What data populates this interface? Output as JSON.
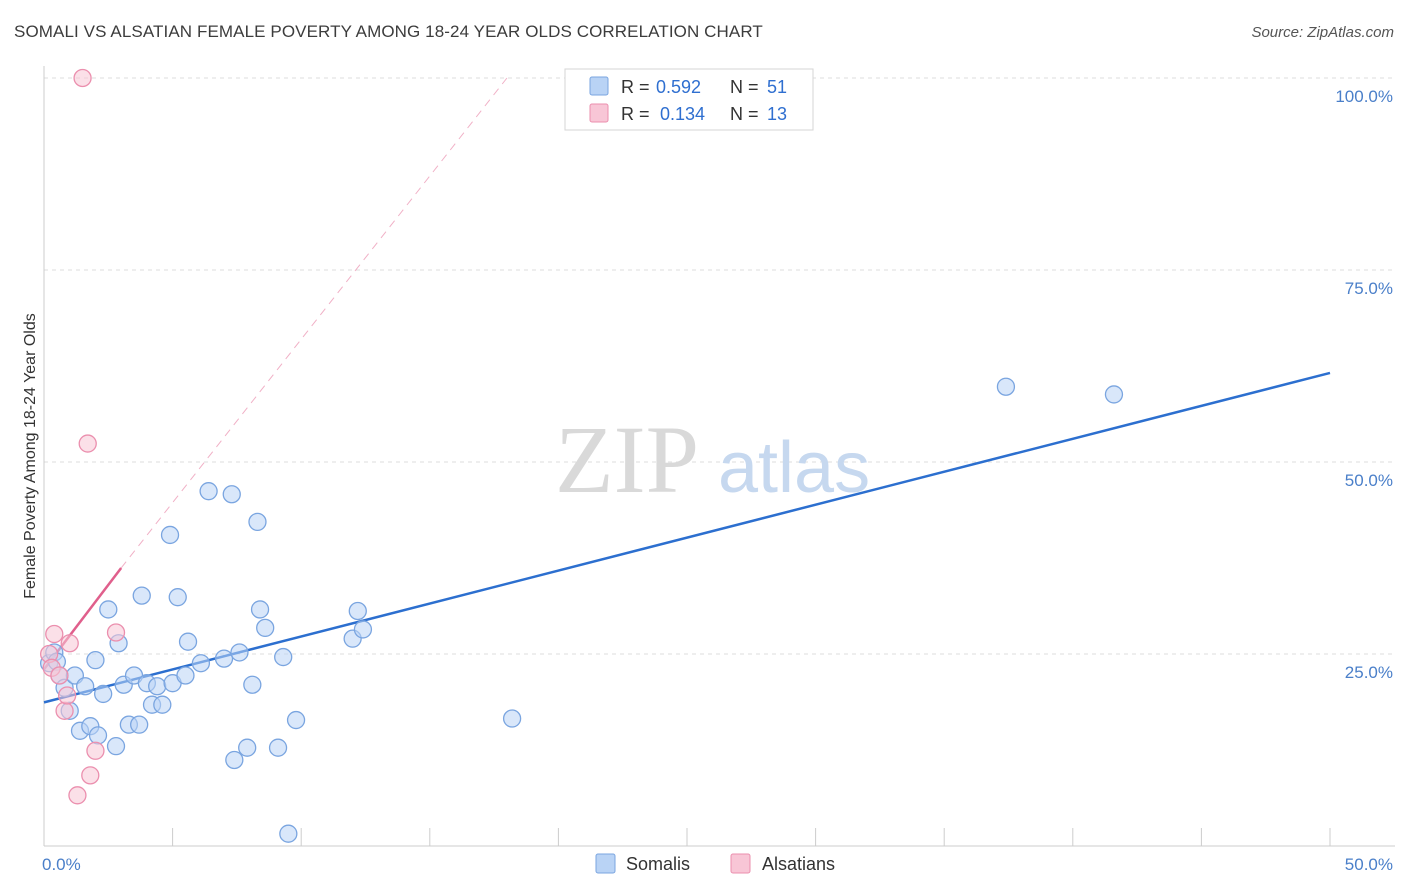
{
  "title": "SOMALI VS ALSATIAN FEMALE POVERTY AMONG 18-24 YEAR OLDS CORRELATION CHART",
  "source": "Source: ZipAtlas.com",
  "watermark": {
    "zip": "ZIP",
    "atlas": "atlas"
  },
  "colors": {
    "somali_fill": "#b9d3f5",
    "somali_stroke": "#7aa5e0",
    "somali_line": "#2c6fcf",
    "alsatian_fill": "#f8c6d6",
    "alsatian_stroke": "#eb8fae",
    "alsatian_line": "#e05f8c",
    "grid": "#dddddd"
  },
  "legend": {
    "rows": [
      {
        "r_label": "R = ",
        "r_value": "0.592",
        "n_label": "N = ",
        "n_value": "51"
      },
      {
        "r_label": "R = ",
        "r_value": "0.134",
        "n_label": "N = ",
        "n_value": "13"
      }
    ]
  },
  "chart_data": {
    "type": "scatter",
    "title": "SOMALI VS ALSATIAN FEMALE POVERTY AMONG 18-24 YEAR OLDS CORRELATION CHART",
    "xlabel": "",
    "ylabel": "Female Poverty Among 18-24 Year Olds",
    "xlim": [
      0,
      50
    ],
    "ylim": [
      0,
      100
    ],
    "x_tick_labels": [
      {
        "value": 0,
        "label": "0.0%"
      },
      {
        "value": 50,
        "label": "50.0%"
      }
    ],
    "y_tick_labels": [
      {
        "value": 100,
        "label": "100.0%"
      },
      {
        "value": 75,
        "label": "75.0%"
      },
      {
        "value": 50,
        "label": "50.0%"
      },
      {
        "value": 25,
        "label": "25.0%"
      }
    ],
    "series": [
      {
        "name": "Somalis",
        "points": [
          [
            0.2,
            23.8
          ],
          [
            0.4,
            25.2
          ],
          [
            0.5,
            24.0
          ],
          [
            0.6,
            22.2
          ],
          [
            0.8,
            20.6
          ],
          [
            1.0,
            17.6
          ],
          [
            1.2,
            22.2
          ],
          [
            1.4,
            15.0
          ],
          [
            1.6,
            20.8
          ],
          [
            1.8,
            15.6
          ],
          [
            2.0,
            24.2
          ],
          [
            2.1,
            14.4
          ],
          [
            2.3,
            19.8
          ],
          [
            2.5,
            30.8
          ],
          [
            2.8,
            13.0
          ],
          [
            2.9,
            26.4
          ],
          [
            3.1,
            21.0
          ],
          [
            3.3,
            15.8
          ],
          [
            3.5,
            22.2
          ],
          [
            3.7,
            15.8
          ],
          [
            3.8,
            32.6
          ],
          [
            4.0,
            21.2
          ],
          [
            4.2,
            18.4
          ],
          [
            4.4,
            20.8
          ],
          [
            4.6,
            18.4
          ],
          [
            4.9,
            40.5
          ],
          [
            5.0,
            21.2
          ],
          [
            5.2,
            32.4
          ],
          [
            5.5,
            22.2
          ],
          [
            5.6,
            26.6
          ],
          [
            6.1,
            23.8
          ],
          [
            6.4,
            46.2
          ],
          [
            7.0,
            24.4
          ],
          [
            7.3,
            45.8
          ],
          [
            7.4,
            11.2
          ],
          [
            7.6,
            25.2
          ],
          [
            7.9,
            12.8
          ],
          [
            8.1,
            21.0
          ],
          [
            8.3,
            42.2
          ],
          [
            8.4,
            30.8
          ],
          [
            8.6,
            28.4
          ],
          [
            9.1,
            12.8
          ],
          [
            9.3,
            24.6
          ],
          [
            9.5,
            1.6
          ],
          [
            9.8,
            16.4
          ],
          [
            12.0,
            27.0
          ],
          [
            12.2,
            30.6
          ],
          [
            12.4,
            28.2
          ],
          [
            18.2,
            16.6
          ],
          [
            37.4,
            59.8
          ],
          [
            41.6,
            58.8
          ]
        ],
        "trend": {
          "x0": 0,
          "y0": 18.7,
          "x1": 50,
          "y1": 61.6
        }
      },
      {
        "name": "Alsatians",
        "points": [
          [
            0.2,
            25.0
          ],
          [
            0.3,
            23.2
          ],
          [
            0.4,
            27.6
          ],
          [
            0.6,
            22.2
          ],
          [
            0.8,
            17.6
          ],
          [
            0.9,
            19.6
          ],
          [
            1.0,
            26.4
          ],
          [
            1.3,
            6.6
          ],
          [
            1.5,
            100.0
          ],
          [
            1.7,
            52.4
          ],
          [
            1.8,
            9.2
          ],
          [
            2.0,
            12.4
          ],
          [
            2.8,
            27.8
          ]
        ],
        "trend": {
          "x0": 0,
          "y0": 23.0,
          "x1": 3.0,
          "y1": 36.2
        },
        "trend_extended": {
          "x0": 3.0,
          "y0": 36.2,
          "x1": 18.0,
          "y1": 100.0
        }
      }
    ]
  }
}
